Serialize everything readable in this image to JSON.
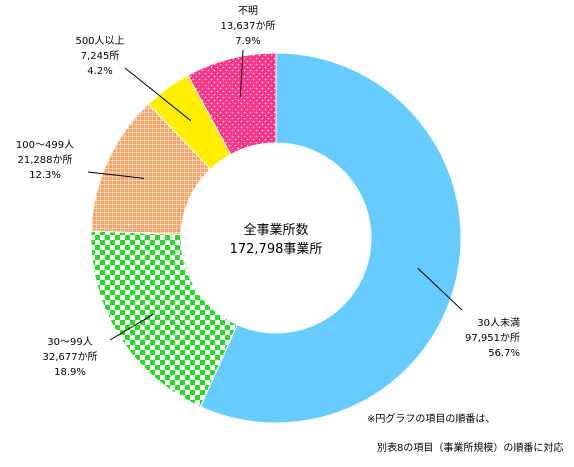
{
  "chart_data": {
    "type": "pie",
    "donut": true,
    "center_label": [
      "全事業所数",
      "172,798事業所"
    ],
    "slices": [
      {
        "name": "30人未満",
        "count": "97,951か所",
        "percent": 56.7,
        "percent_label": "56.7%",
        "color": "#66ccff",
        "pattern": "solid"
      },
      {
        "name": "30～99人",
        "count": "32,677か所",
        "percent": 18.9,
        "percent_label": "18.9%",
        "color": "#22dd22",
        "pattern": "checker"
      },
      {
        "name": "100～499人",
        "count": "21,288か所",
        "percent": 12.3,
        "percent_label": "12.3%",
        "color": "#ee9955",
        "pattern": "grid"
      },
      {
        "name": "500人以上",
        "count": "7,245所",
        "percent": 4.2,
        "percent_label": "4.2%",
        "color": "#ffee00",
        "pattern": "solid"
      },
      {
        "name": "不明",
        "count": "13,637か所",
        "percent": 7.9,
        "percent_label": "7.9%",
        "color": "#ff3388",
        "pattern": "dots"
      }
    ],
    "notes": [
      "※円グラフの項目の順番は、",
      "別表8の項目（事業所規模）の順番に対応"
    ]
  }
}
